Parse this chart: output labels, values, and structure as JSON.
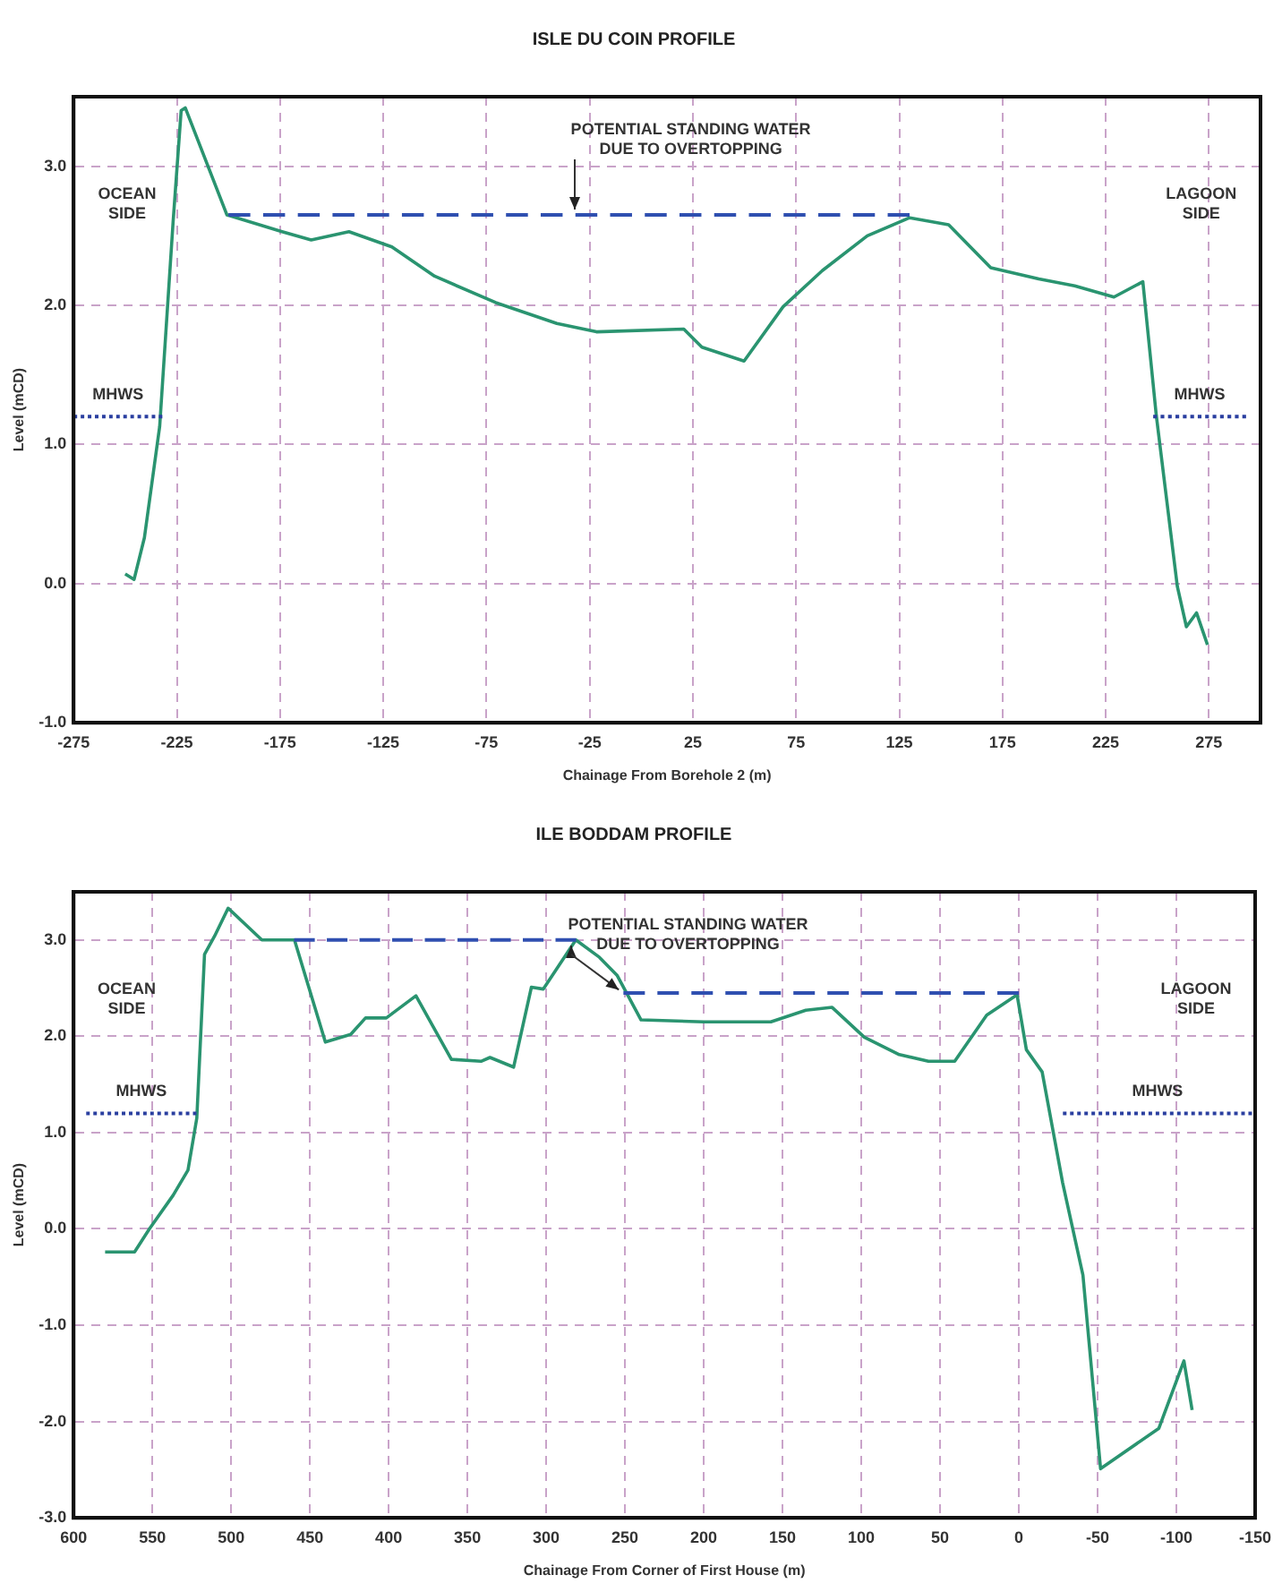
{
  "chart_data": [
    {
      "type": "line",
      "title": "ISLE DU COIN PROFILE",
      "xlabel": "Chainage From Borehole 2 (m)",
      "ylabel": "Level (mCD)",
      "xlim": [
        -275,
        300
      ],
      "xticks": [
        -275,
        -225,
        -175,
        -125,
        -75,
        -25,
        25,
        75,
        125,
        175,
        225,
        275
      ],
      "ylim": [
        -1,
        3.5
      ],
      "yticks": [
        {
          "value": -1,
          "label": "-1.0"
        },
        {
          "value": 0,
          "label": "0.0"
        },
        {
          "value": 1,
          "label": "1.0"
        },
        {
          "value": 2,
          "label": "2.0"
        },
        {
          "value": 3,
          "label": "3.0"
        }
      ],
      "grid": true,
      "marker": "none",
      "series": [
        {
          "color": "#2a9470",
          "line_style": "solid",
          "x": [
            -250,
            -245.7,
            -240.7,
            -233.3,
            -226.8,
            -222.9,
            -220.9,
            -200.7,
            -174,
            -159.9,
            -141.6,
            -120.8,
            -100.1,
            -70.5,
            -40.9,
            -21.7,
            20.6,
            29.4,
            49.8,
            68.7,
            87.7,
            109.5,
            130,
            148.9,
            169.3,
            192.6,
            210,
            229,
            243,
            249.5,
            259.7,
            264.1,
            269,
            274.3
          ],
          "values": [
            0.07,
            0.03,
            0.33,
            1.13,
            2.6,
            3.4,
            3.42,
            2.65,
            2.53,
            2.47,
            2.53,
            2.42,
            2.21,
            2.02,
            1.87,
            1.81,
            1.83,
            1.7,
            1.6,
            1.99,
            2.25,
            2.5,
            2.63,
            2.58,
            2.27,
            2.19,
            2.14,
            2.06,
            2.17,
            1.21,
            -0.02,
            -0.31,
            -0.21,
            -0.44
          ]
        },
        {
          "color": "#2f4fb0",
          "line_style": "dashed",
          "x": [
            -200,
            130
          ],
          "values": [
            2.65,
            2.65
          ]
        },
        {
          "name": "MHWS",
          "color": "#2a3fa0",
          "line_style": "dotted",
          "x": [
            -275,
            -232
          ],
          "values": [
            1.2,
            1.2
          ]
        },
        {
          "name": "MHWS",
          "color": "#2a3fa0",
          "line_style": "dotted",
          "x": [
            248,
            293
          ],
          "values": [
            1.2,
            1.2
          ]
        }
      ],
      "annotations": [
        "POTENTIAL STANDING WATER\nDUE TO OVERTOPPING",
        "OCEAN\nSIDE",
        "LAGOON\nSIDE"
      ]
    },
    {
      "type": "line",
      "title": "ILE BODDAM PROFILE",
      "xlabel": "Chainage From Corner of First House (m)",
      "ylabel": "Level (mCD)",
      "xlim": [
        600,
        -150
      ],
      "xticks": [
        600,
        550,
        500,
        450,
        400,
        350,
        300,
        250,
        200,
        150,
        100,
        50,
        0,
        -50,
        -100,
        -150
      ],
      "ylim": [
        -3,
        3.5
      ],
      "yticks": [
        {
          "value": -3,
          "label": "-3.0"
        },
        {
          "value": -2,
          "label": "-2.0"
        },
        {
          "value": -1,
          "label": "-1.0"
        },
        {
          "value": 0,
          "label": "0.0"
        },
        {
          "value": 1,
          "label": "1.0"
        },
        {
          "value": 2,
          "label": "2.0"
        },
        {
          "value": 3,
          "label": "3.0"
        }
      ],
      "grid": true,
      "marker": "none",
      "series": [
        {
          "color": "#2a9470",
          "line_style": "solid",
          "x": [
            580,
            561.3,
            551.9,
            536.8,
            527.4,
            521.8,
            516.9,
            510.5,
            501.9,
            480.5,
            459.8,
            440.2,
            424.1,
            414.7,
            401.5,
            382.7,
            360.2,
            341.4,
            335.7,
            320.7,
            309.4,
            301.9,
            281.2,
            266.2,
            254.9,
            239.8,
            200,
            157.4,
            135.2,
            118.5,
            98.1,
            75.9,
            57.4,
            40.7,
            20.4,
            1.1,
            -4.8,
            -14.8,
            -27.8,
            -40.7,
            -51.9,
            -88.9,
            -104.8,
            -110
          ],
          "values": [
            -0.24,
            -0.24,
            0,
            0.35,
            0.61,
            1.15,
            2.85,
            3.04,
            3.33,
            3,
            3,
            1.94,
            2.02,
            2.19,
            2.19,
            2.42,
            1.76,
            1.74,
            1.78,
            1.68,
            2.51,
            2.49,
            3,
            2.82,
            2.63,
            2.17,
            2.15,
            2.15,
            2.27,
            2.3,
            1.99,
            1.81,
            1.74,
            1.74,
            2.22,
            2.43,
            1.86,
            1.63,
            0.48,
            -0.48,
            -2.49,
            -2.07,
            -1.37,
            -1.88
          ]
        },
        {
          "color": "#2f4fb0",
          "line_style": "dashed",
          "x": [
            460,
            281
          ],
          "values": [
            3,
            3
          ]
        },
        {
          "color": "#2f4fb0",
          "line_style": "dashed",
          "x": [
            251,
            0
          ],
          "values": [
            2.45,
            2.45
          ]
        },
        {
          "name": "MHWS",
          "color": "#2a3fa0",
          "line_style": "dotted",
          "x": [
            592,
            522
          ],
          "values": [
            1.2,
            1.2
          ]
        },
        {
          "name": "MHWS",
          "color": "#2a3fa0",
          "line_style": "dotted",
          "x": [
            -28,
            -148
          ],
          "values": [
            1.2,
            1.2
          ]
        }
      ],
      "annotations": [
        "POTENTIAL STANDING WATER\nDUE TO OVERTOPPING",
        "OCEAN\nSIDE",
        "LAGOON\nSIDE"
      ]
    }
  ]
}
